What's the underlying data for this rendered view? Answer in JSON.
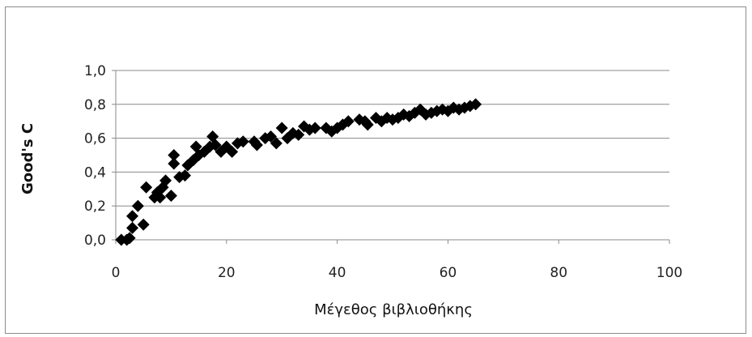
{
  "chart_data": {
    "type": "scatter",
    "title": "",
    "xlabel": "Μέγεθος βιβλιοθήκης",
    "ylabel": "Good's C",
    "xlim": [
      0,
      100
    ],
    "ylim": [
      0,
      1
    ],
    "x_ticks": [
      0,
      20,
      40,
      60,
      80,
      100
    ],
    "x_tick_labels": [
      "0",
      "20",
      "40",
      "60",
      "80",
      "100"
    ],
    "y_ticks": [
      0,
      0.2,
      0.4,
      0.6,
      0.8,
      1.0
    ],
    "y_tick_labels": [
      "0,0",
      "0,2",
      "0,4",
      "0,6",
      "0,8",
      "1,0"
    ],
    "grid": "horizontal",
    "legend": "none",
    "marker": "diamond",
    "marker_color": "#000000",
    "series": [
      {
        "points": [
          [
            1,
            0.0
          ],
          [
            2,
            0.0
          ],
          [
            2.5,
            0.01
          ],
          [
            3,
            0.07
          ],
          [
            3,
            0.14
          ],
          [
            4,
            0.2
          ],
          [
            5,
            0.09
          ],
          [
            5.5,
            0.31
          ],
          [
            7,
            0.25
          ],
          [
            7.5,
            0.28
          ],
          [
            8,
            0.25
          ],
          [
            8.5,
            0.31
          ],
          [
            9,
            0.35
          ],
          [
            10,
            0.26
          ],
          [
            10.5,
            0.45
          ],
          [
            10.5,
            0.5
          ],
          [
            11.5,
            0.37
          ],
          [
            12.5,
            0.38
          ],
          [
            13,
            0.44
          ],
          [
            14,
            0.47
          ],
          [
            14.5,
            0.55
          ],
          [
            15,
            0.5
          ],
          [
            16,
            0.52
          ],
          [
            17,
            0.55
          ],
          [
            17.5,
            0.61
          ],
          [
            18,
            0.56
          ],
          [
            19,
            0.52
          ],
          [
            20,
            0.55
          ],
          [
            21,
            0.52
          ],
          [
            22,
            0.57
          ],
          [
            23,
            0.58
          ],
          [
            25,
            0.58
          ],
          [
            25.5,
            0.56
          ],
          [
            27,
            0.6
          ],
          [
            28,
            0.61
          ],
          [
            29,
            0.57
          ],
          [
            30,
            0.66
          ],
          [
            31,
            0.6
          ],
          [
            32,
            0.63
          ],
          [
            33,
            0.62
          ],
          [
            34,
            0.67
          ],
          [
            35,
            0.65
          ],
          [
            36,
            0.66
          ],
          [
            38,
            0.66
          ],
          [
            39,
            0.64
          ],
          [
            40,
            0.66
          ],
          [
            41,
            0.68
          ],
          [
            42,
            0.7
          ],
          [
            44,
            0.71
          ],
          [
            45,
            0.7
          ],
          [
            45.5,
            0.68
          ],
          [
            47,
            0.72
          ],
          [
            48,
            0.7
          ],
          [
            49,
            0.72
          ],
          [
            50,
            0.71
          ],
          [
            51,
            0.72
          ],
          [
            52,
            0.74
          ],
          [
            53,
            0.73
          ],
          [
            54,
            0.75
          ],
          [
            55,
            0.77
          ],
          [
            56,
            0.74
          ],
          [
            57,
            0.75
          ],
          [
            58,
            0.76
          ],
          [
            59,
            0.77
          ],
          [
            60,
            0.76
          ],
          [
            61,
            0.78
          ],
          [
            62,
            0.77
          ],
          [
            63,
            0.78
          ],
          [
            64,
            0.79
          ],
          [
            65,
            0.8
          ]
        ]
      }
    ]
  }
}
